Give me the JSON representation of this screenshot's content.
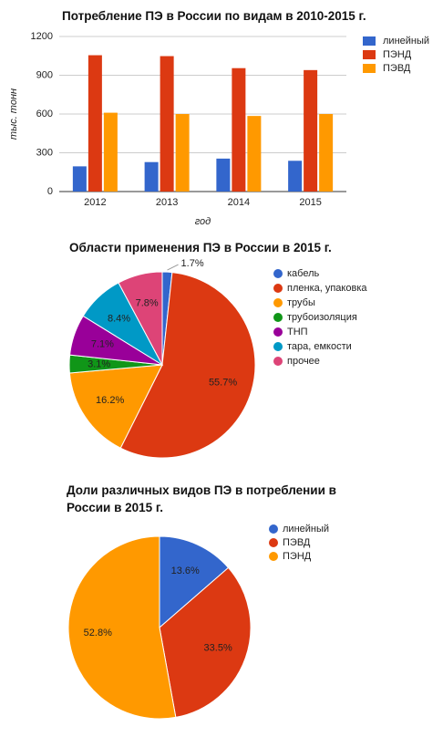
{
  "chart_data": [
    {
      "type": "bar",
      "title": "Потребление ПЭ в России по видам в 2010-2015 г.",
      "y_label": "тыс. тонн",
      "x_label": "год",
      "categories": [
        "2012",
        "2013",
        "2014",
        "2015"
      ],
      "series": [
        {
          "name": "линейный",
          "color": "#3366cc",
          "values": [
            195,
            228,
            255,
            238
          ]
        },
        {
          "name": "ПЭНД",
          "color": "#dc3912",
          "values": [
            1055,
            1048,
            955,
            940
          ]
        },
        {
          "name": "ПЭВД",
          "color": "#ff9900",
          "values": [
            610,
            600,
            585,
            600
          ]
        }
      ],
      "ylim": [
        0,
        1200
      ],
      "yticks": [
        0,
        300,
        600,
        900,
        1200
      ],
      "grid": true,
      "legend": "right"
    },
    {
      "type": "pie",
      "title": "Области применения ПЭ в России в 2015 г.",
      "categories": [
        "кабель",
        "пленка, упаковка",
        "трубы",
        "трубоизоляция",
        "ТНП",
        "тара, емкости",
        "прочее"
      ],
      "values": [
        1.7,
        55.7,
        16.2,
        3.1,
        7.1,
        8.4,
        7.8
      ],
      "value_labels": [
        "1.7%",
        "55.7%",
        "16.2%",
        "3.1%",
        "7.1%",
        "8.4%",
        "7.8%"
      ],
      "colors": [
        "#3366cc",
        "#dc3912",
        "#ff9900",
        "#109618",
        "#990099",
        "#0099c6",
        "#dd4477"
      ],
      "legend": "right"
    },
    {
      "type": "pie",
      "title": "Доли различных видов ПЭ в потреблении в России в 2015 г.",
      "categories": [
        "линейный",
        "ПЭВД",
        "ПЭНД"
      ],
      "values": [
        13.6,
        33.5,
        52.8
      ],
      "value_labels": [
        "13.6%",
        "33.5%",
        "52.8%"
      ],
      "colors": [
        "#3366cc",
        "#dc3912",
        "#ff9900"
      ],
      "legend": "right"
    }
  ]
}
